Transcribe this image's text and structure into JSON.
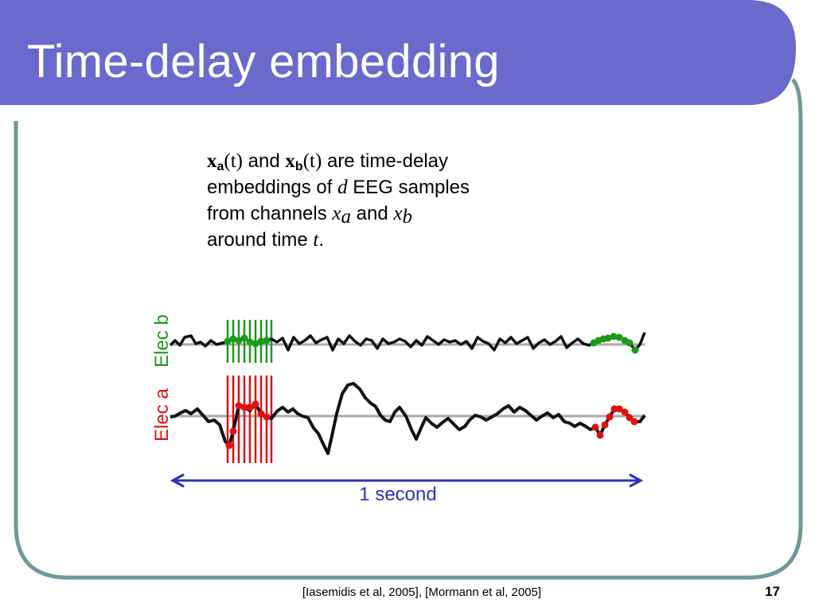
{
  "slide": {
    "title": "Time-delay embedding",
    "colors": {
      "title_bar": "#6a6acc",
      "frame": "#6f9999",
      "text": "#000000"
    }
  },
  "body": {
    "xa_symbol": "x",
    "xa_sub": "a",
    "xa_arg": "(t)",
    "and_1": " and ",
    "xb_symbol": "x",
    "xb_sub": "b",
    "xb_arg": "(t)",
    "line1_tail": " are time-delay",
    "line2_head": "embeddings of ",
    "d_symbol": "d",
    "line2_tail": " EEG samples",
    "line3_head": "from channels ",
    "ch_a_symbol": "x",
    "ch_a_sub": "a",
    "and_2": " and ",
    "ch_b_symbol": "x",
    "ch_b_sub": "b",
    "line4_head": "around time ",
    "t_symbol": "t",
    "line4_tail": "."
  },
  "figure": {
    "elec_b_label": "Elec b",
    "elec_a_label": "Elec a",
    "elec_b_color": "#1a9a1a",
    "elec_a_color": "#e01010",
    "trace_color": "#111111",
    "baseline_color": "#aaaaaa",
    "duration_label": "1 second",
    "arrow_color": "#2e31b8"
  },
  "footer": {
    "citation": "[Iasemidis et al, 2005], [Mormann et al, 2005]",
    "page_number": "17"
  }
}
